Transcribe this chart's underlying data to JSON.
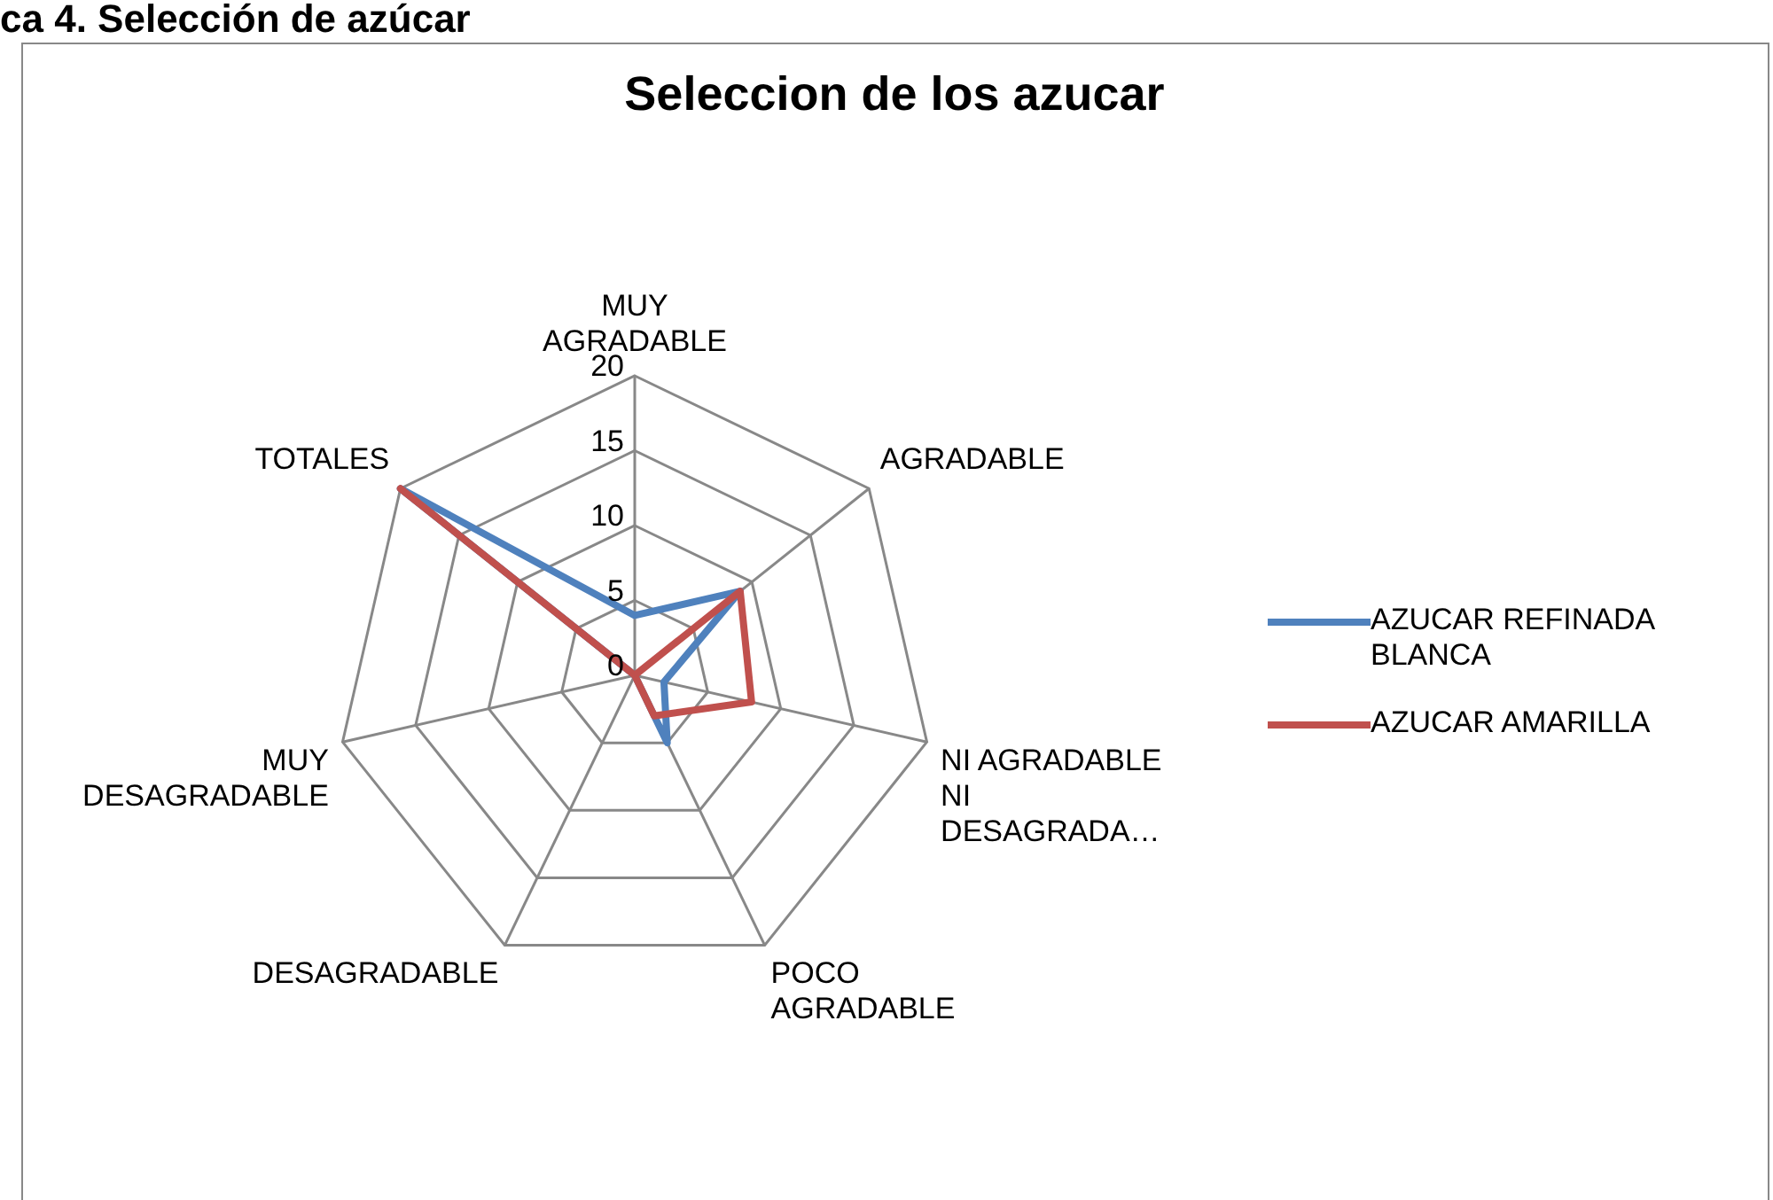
{
  "chart_data": {
    "type": "radar",
    "title": "Seleccion de los azucar",
    "annotations": [
      "ca 4. Selección de azúcar"
    ],
    "categories": [
      "MUY AGRADABLE",
      "AGRADABLE",
      "NI AGRADABLE NI DESAGRADA…",
      "POCO AGRADABLE",
      "DESAGRADABLE",
      "MUY DESAGRADABLE",
      "TOTALES"
    ],
    "series": [
      {
        "name": "AZUCAR REFINADA BLANCA",
        "color": "#4f81bd",
        "values": [
          4,
          9,
          2,
          5,
          0,
          0,
          20
        ]
      },
      {
        "name": "AZUCAR AMARILLA",
        "color": "#c0504d",
        "values": [
          0,
          9,
          8,
          3,
          0,
          0,
          20
        ]
      }
    ],
    "ylim": [
      0,
      20
    ],
    "yticks": [
      0,
      5,
      10,
      15,
      20
    ],
    "grid": true,
    "legend": "right",
    "marker": "none",
    "line_style": "solid"
  }
}
